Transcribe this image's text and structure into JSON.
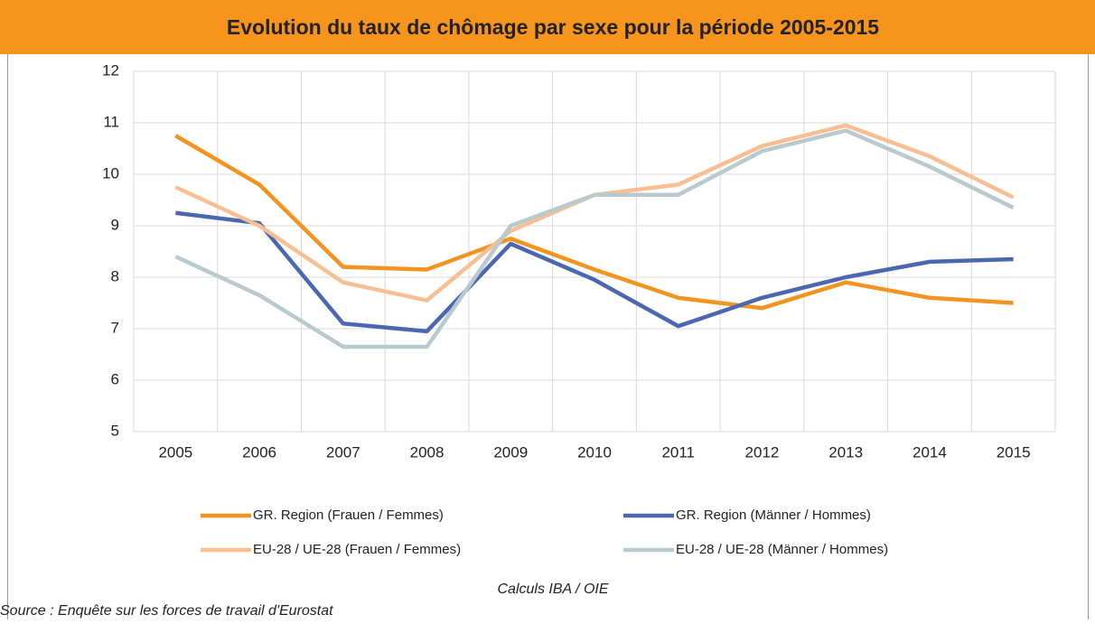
{
  "chart_data": {
    "type": "line",
    "title": "Evolution du taux de chômage par sexe pour la période 2005-2015",
    "categories": [
      "2005",
      "2006",
      "2007",
      "2008",
      "2009",
      "2010",
      "2011",
      "2012",
      "2013",
      "2014",
      "2015"
    ],
    "series": [
      {
        "name": "GR. Region (Frauen / Femmes)",
        "color": "#f39420",
        "values": [
          10.75,
          9.8,
          8.2,
          8.15,
          8.75,
          8.15,
          7.6,
          7.4,
          7.9,
          7.6,
          7.5
        ]
      },
      {
        "name": "GR. Region (Männer / Hommes)",
        "color": "#4a67b0",
        "values": [
          9.25,
          9.05,
          7.1,
          6.95,
          8.65,
          7.95,
          7.05,
          7.6,
          8.0,
          8.3,
          8.35
        ]
      },
      {
        "name": "EU-28 / UE-28 (Frauen / Femmes)",
        "color": "#f8c092",
        "values": [
          9.75,
          9.0,
          7.9,
          7.55,
          8.9,
          9.6,
          9.8,
          10.55,
          10.95,
          10.35,
          9.55
        ]
      },
      {
        "name": "EU-28 / UE-28 (Männer / Hommes)",
        "color": "#b9cace",
        "values": [
          8.4,
          7.65,
          6.65,
          6.65,
          9.0,
          9.6,
          9.6,
          10.45,
          10.85,
          10.15,
          9.35
        ]
      }
    ],
    "ylim": [
      5,
      12
    ],
    "yticks": [
      5,
      6,
      7,
      8,
      9,
      10,
      11,
      12
    ],
    "grid": true,
    "legend": "bottom",
    "note": "Calculs IBA / OIE",
    "source": "Source : Enquête sur les forces de travail d'Eurostat"
  }
}
